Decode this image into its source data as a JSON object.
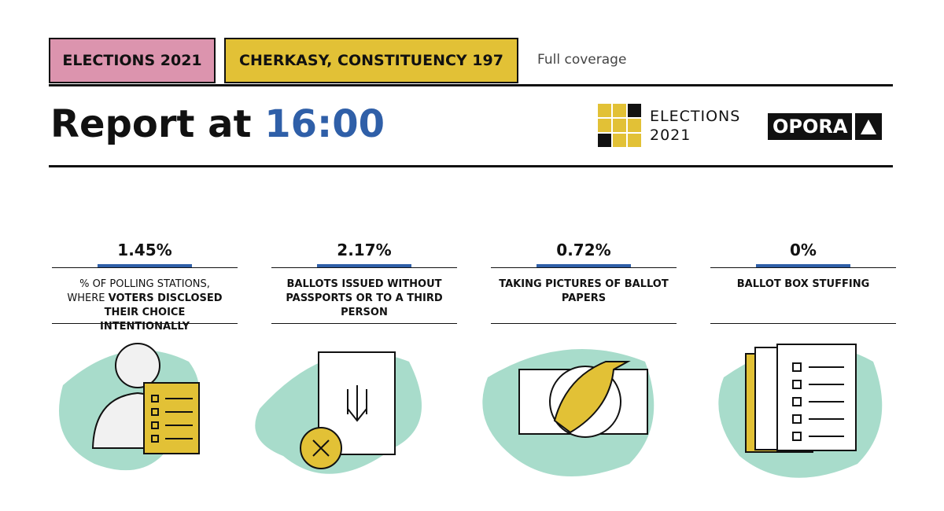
{
  "tags": [
    "ELECTIONS 2021",
    "CHERKASY, CONSTITUENCY 197"
  ],
  "link": "Full coverage",
  "title": {
    "prefix": "Report at",
    "time": "16:00"
  },
  "logo": {
    "line1": "ELECTIONS",
    "line2": "2021"
  },
  "brand": "OPORA",
  "cards": [
    {
      "value": "1.45%",
      "label": [
        {
          "text": "% OF POLLING STATIONS, WHERE",
          "bold": false
        },
        {
          "text": "VOTERS DISCLOSED THEIR CHOICE INTENTIONALLY",
          "bold": true
        }
      ]
    },
    {
      "value": "2.17%",
      "label": [
        {
          "text": "BALLOTS ISSUED WITHOUT PASSPORTS OR TO A THIRD PERSON",
          "bold": true
        }
      ]
    },
    {
      "value": "0.72%",
      "label": [
        {
          "text": "TAKING PICTURES OF BALLOT PAPERS",
          "bold": true
        }
      ]
    },
    {
      "value": "0%",
      "label": [
        {
          "text": "BALLOT BOX STUFFING",
          "bold": true
        }
      ]
    }
  ]
}
